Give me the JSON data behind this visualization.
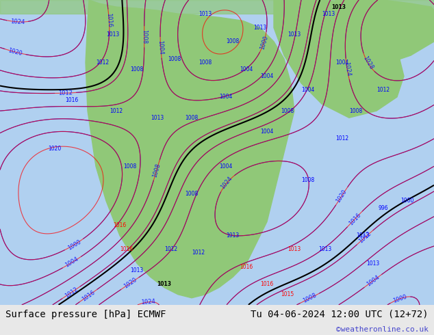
{
  "title_left": "Surface pressure [hPa] ECMWF",
  "title_right": "Tu 04-06-2024 12:00 UTC (12+72)",
  "watermark": "©weatheronline.co.uk",
  "bg_color": "#e8e8e8",
  "map_bg_color": "#90c878",
  "sea_color": "#b0d0f0",
  "label_fontsize": 10,
  "watermark_color": "#4444cc",
  "bottom_bar_color": "#d8d8d8",
  "figsize": [
    6.34,
    4.9
  ],
  "dpi": 100
}
